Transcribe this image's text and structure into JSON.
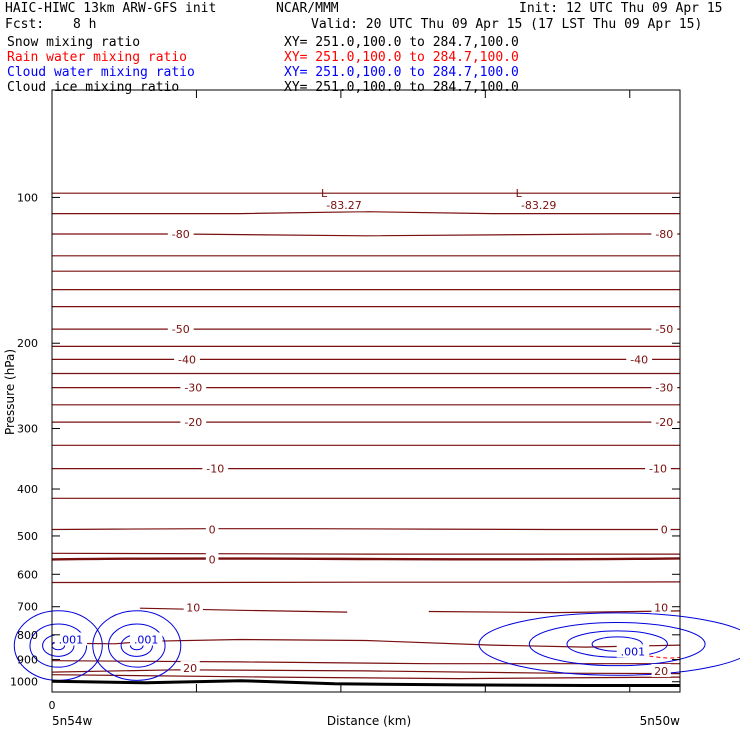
{
  "header": {
    "title_left": "HAIC-HIWC 13km ARW-GFS init",
    "org": "NCAR/MMM",
    "init": "Init: 12 UTC Thu 09 Apr 15",
    "fcst_label": "Fcst:",
    "fcst_value": "8 h",
    "valid": "Valid: 20 UTC Thu 09 Apr 15 (17 LST Thu 09 Apr 15)"
  },
  "fields": [
    {
      "name": "Snow mixing ratio",
      "xy": "XY= 251.0,100.0 to 284.7,100.0",
      "color": "#000000"
    },
    {
      "name": "Rain water mixing ratio",
      "xy": "XY= 251.0,100.0 to 284.7,100.0",
      "color": "#ff0000"
    },
    {
      "name": "Cloud water mixing ratio",
      "xy": "XY= 251.0,100.0 to 284.7,100.0",
      "color": "#0000ff"
    },
    {
      "name": "Cloud ice mixing ratio",
      "xy": "XY= 251.0,100.0 to 284.7,100.0",
      "color": "#000000"
    }
  ],
  "colors": {
    "temperature": "#7a0f0f",
    "cloud_water": "#0000dd",
    "terrain": "#000000",
    "frame": "#000000"
  },
  "chart_data": {
    "type": "line",
    "title": "",
    "xlabel": "Distance (km)",
    "ylabel": "Pressure (hPa)",
    "ylim": [
      1050,
      60
    ],
    "y_ticks": [
      100,
      200,
      300,
      400,
      500,
      600,
      700,
      800,
      900,
      1000
    ],
    "y_scale": "log",
    "xlim": [
      0,
      1
    ],
    "x_tick_labels": [
      "0"
    ],
    "x_end_labels": [
      "5n54w",
      "5n50w"
    ],
    "grid": false,
    "temperature_labels": [
      {
        "label": "-80",
        "x": 0.205,
        "p": 119
      },
      {
        "label": "-80",
        "x": 0.975,
        "p": 119
      },
      {
        "label": "-50",
        "x": 0.205,
        "p": 187
      },
      {
        "label": "-50",
        "x": 0.975,
        "p": 187
      },
      {
        "label": "-40",
        "x": 0.215,
        "p": 216
      },
      {
        "label": "-40",
        "x": 0.935,
        "p": 216
      },
      {
        "label": "-30",
        "x": 0.225,
        "p": 247
      },
      {
        "label": "-30",
        "x": 0.975,
        "p": 247
      },
      {
        "label": "-20",
        "x": 0.225,
        "p": 291
      },
      {
        "label": "-20",
        "x": 0.975,
        "p": 291
      },
      {
        "label": "-10",
        "x": 0.26,
        "p": 363
      },
      {
        "label": "-10",
        "x": 0.965,
        "p": 363
      },
      {
        "label": "0",
        "x": 0.255,
        "p": 485
      },
      {
        "label": "0",
        "x": 0.975,
        "p": 485
      },
      {
        "label": "10",
        "x": 0.225,
        "p": 702
      },
      {
        "label": "10",
        "x": 0.97,
        "p": 702
      },
      {
        "label": "20",
        "x": 0.22,
        "p": 937
      },
      {
        "label": "20",
        "x": 0.97,
        "p": 950
      }
    ],
    "lows": [
      {
        "label": "L",
        "value": "-83.27",
        "x": 0.465,
        "p": 98
      },
      {
        "label": "L",
        "value": "-83.29",
        "x": 0.775,
        "p": 98
      }
    ],
    "temperature_contours": [
      {
        "x": [
          0,
          0.2,
          0.5,
          0.8,
          1
        ],
        "p": [
          98,
          98,
          98,
          98,
          98
        ]
      },
      {
        "x": [
          0,
          0.3,
          0.5,
          0.7,
          1
        ],
        "p": [
          108,
          108,
          107,
          108,
          108
        ]
      },
      {
        "x": [
          0,
          0.14,
          0.2,
          0.5,
          0.9,
          0.93,
          1
        ],
        "p": [
          119,
          119,
          119,
          120,
          119,
          119,
          119
        ]
      },
      {
        "x": [
          0,
          0.5,
          1
        ],
        "p": [
          132,
          132,
          132
        ]
      },
      {
        "x": [
          0,
          0.5,
          1
        ],
        "p": [
          142,
          142,
          142
        ]
      },
      {
        "x": [
          0,
          0.5,
          1
        ],
        "p": [
          155,
          155,
          155
        ]
      },
      {
        "x": [
          0,
          0.5,
          1
        ],
        "p": [
          168,
          168,
          168
        ]
      },
      {
        "x": [
          0,
          0.17,
          0.24,
          0.5,
          0.95,
          1
        ],
        "p": [
          187,
          187,
          187,
          187,
          187,
          187
        ]
      },
      {
        "x": [
          0,
          0.5,
          1
        ],
        "p": [
          203,
          203,
          203
        ]
      },
      {
        "x": [
          0,
          0.18,
          0.25,
          0.5,
          0.9,
          0.96,
          1
        ],
        "p": [
          216,
          216,
          216,
          216,
          216,
          216,
          216
        ]
      },
      {
        "x": [
          0,
          0.5,
          1
        ],
        "p": [
          231,
          231,
          231
        ]
      },
      {
        "x": [
          0,
          0.19,
          0.26,
          0.5,
          0.95,
          1
        ],
        "p": [
          247,
          247,
          247,
          247,
          247,
          247
        ]
      },
      {
        "x": [
          0,
          0.5,
          1
        ],
        "p": [
          268,
          268,
          268
        ]
      },
      {
        "x": [
          0,
          0.19,
          0.26,
          0.5,
          0.95,
          1
        ],
        "p": [
          291,
          291,
          291,
          291,
          291,
          291
        ]
      },
      {
        "x": [
          0,
          0.5,
          1
        ],
        "p": [
          325,
          325,
          325
        ]
      },
      {
        "x": [
          0,
          0.22,
          0.3,
          0.5,
          0.94,
          1
        ],
        "p": [
          363,
          363,
          363,
          363,
          363,
          363
        ]
      },
      {
        "x": [
          0,
          0.5,
          1
        ],
        "p": [
          418,
          418,
          418
        ]
      },
      {
        "x": [
          0,
          0.1,
          0.25,
          0.4,
          0.6,
          0.8,
          1
        ],
        "p": [
          485,
          484,
          483,
          483,
          484,
          485,
          485
        ]
      },
      {
        "x": [
          0,
          0.5,
          1
        ],
        "p": [
          543,
          545,
          545
        ]
      },
      {
        "x": [
          0,
          0.2,
          0.5,
          0.8,
          1
        ],
        "p": [
          624,
          624,
          623,
          623,
          622
        ]
      },
      {
        "x": [
          0.14,
          0.3,
          0.47
        ],
        "p": [
          705,
          712,
          718
        ]
      },
      {
        "x": [
          0.6,
          0.8,
          1
        ],
        "p": [
          716,
          720,
          714
        ]
      },
      {
        "x": [
          0,
          0.1,
          0.15,
          0.3,
          0.5,
          0.7,
          0.85,
          1
        ],
        "p": [
          832,
          835,
          825,
          818,
          822,
          840,
          848,
          840
        ]
      },
      {
        "x": [
          0,
          0.3,
          0.6,
          1
        ],
        "p": [
          905,
          910,
          918,
          918
        ]
      },
      {
        "x": [
          0,
          0.2,
          0.5,
          0.8,
          1
        ],
        "p": [
          955,
          945,
          950,
          960,
          962
        ]
      },
      {
        "x": [
          0,
          0.35,
          0.65,
          1
        ],
        "p": [
          967,
          978,
          985,
          978
        ]
      }
    ],
    "zero_contour": {
      "label": "0",
      "p": 559
    },
    "terrain": {
      "x": [
        0,
        0.15,
        0.3,
        0.45,
        0.65,
        0.85,
        1
      ],
      "p": [
        998,
        1005,
        995,
        1010,
        1015,
        1018,
        1018
      ]
    },
    "cloud_water_label": ".001",
    "cloud_water": [
      {
        "center_x": 0.01,
        "center_p": 842,
        "rings": [
          [
            0.07,
            58
          ],
          [
            0.045,
            36
          ],
          [
            0.025,
            18
          ],
          [
            0.01,
            7
          ]
        ],
        "label_x": 0.03,
        "label_p": 818
      },
      {
        "center_x": 0.135,
        "center_p": 842,
        "rings": [
          [
            0.07,
            58
          ],
          [
            0.045,
            36
          ],
          [
            0.025,
            18
          ],
          [
            0.01,
            7
          ]
        ],
        "label_x": 0.15,
        "label_p": 818
      },
      {
        "center_x": 0.9,
        "center_p": 836,
        "rings": [
          [
            0.22,
            52
          ],
          [
            0.14,
            36
          ],
          [
            0.08,
            22
          ],
          [
            0.04,
            12
          ]
        ],
        "label_x": 0.925,
        "label_p": 866
      }
    ]
  }
}
